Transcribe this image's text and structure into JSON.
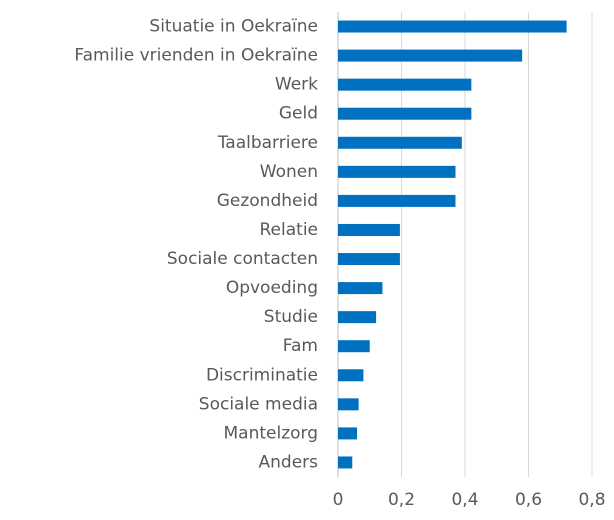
{
  "chart_data": {
    "type": "bar",
    "orientation": "horizontal",
    "categories": [
      "Situatie in Oekraïne",
      "Familie vrienden in Oekraïne",
      "Werk",
      "Geld",
      "Taalbarriere",
      "Wonen",
      "Gezondheid",
      "Relatie",
      "Sociale contacten",
      "Opvoeding",
      "Studie",
      "Fam",
      "Discriminatie",
      "Sociale media",
      "Mantelzorg",
      "Anders"
    ],
    "values": [
      0.72,
      0.58,
      0.42,
      0.42,
      0.39,
      0.37,
      0.37,
      0.195,
      0.195,
      0.14,
      0.12,
      0.1,
      0.08,
      0.065,
      0.06,
      0.045
    ],
    "color": "#0070c0",
    "xlim": [
      0,
      0.8
    ],
    "xticks": [
      0,
      {
        "value": 0.2,
        "label": "0,2"
      },
      {
        "value": 0.4,
        "label": "0,4"
      },
      {
        "value": 0.6,
        "label": "0,6"
      },
      {
        "value": 0.8,
        "label": "0,8"
      }
    ],
    "grid": true
  }
}
